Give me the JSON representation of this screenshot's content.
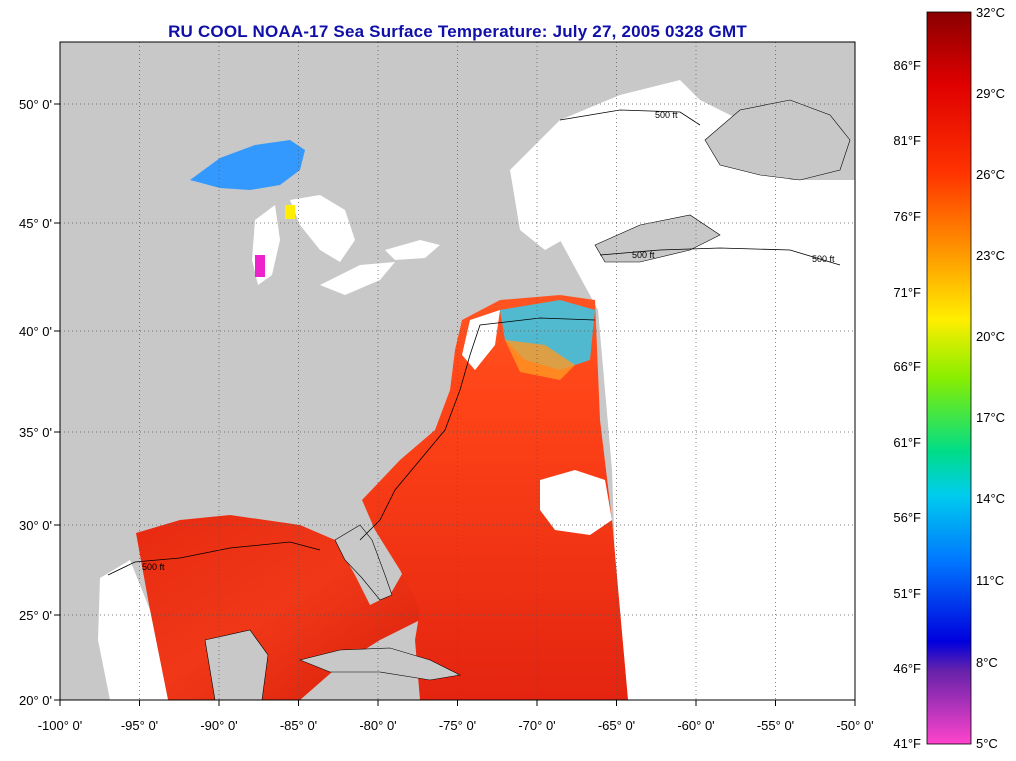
{
  "title": "RU COOL  NOAA-17  Sea Surface Temperature:  July 27, 2005 0328 GMT",
  "x_axis": {
    "labels": [
      "-100° 0'",
      "-95° 0'",
      "-90° 0'",
      "-85° 0'",
      "-80° 0'",
      "-75° 0'",
      "-70° 0'",
      "-65° 0'",
      "-60° 0'",
      "-55° 0'",
      "-50° 0'"
    ],
    "values": [
      -100,
      -95,
      -90,
      -85,
      -80,
      -75,
      -70,
      -65,
      -60,
      -55,
      -50
    ]
  },
  "y_axis": {
    "labels": [
      "20° 0'",
      "25° 0'",
      "30° 0'",
      "35° 0'",
      "40° 0'",
      "45° 0'",
      "50° 0'"
    ],
    "values": [
      20,
      25,
      30,
      35,
      40,
      45,
      50
    ]
  },
  "contour_label": "500 ft",
  "colorbar": {
    "celsius": [
      "32°C",
      "29°C",
      "26°C",
      "23°C",
      "20°C",
      "17°C",
      "14°C",
      "11°C",
      "8°C",
      "5°C"
    ],
    "fahrenheit": [
      "86°F",
      "81°F",
      "76°F",
      "71°F",
      "66°F",
      "61°F",
      "56°F",
      "51°F",
      "46°F",
      "41°F"
    ]
  },
  "colors": {
    "land": "#c8c8c8",
    "cloud": "#ffffff",
    "warm_water": "#ee2a10",
    "title": "#1010a8"
  }
}
